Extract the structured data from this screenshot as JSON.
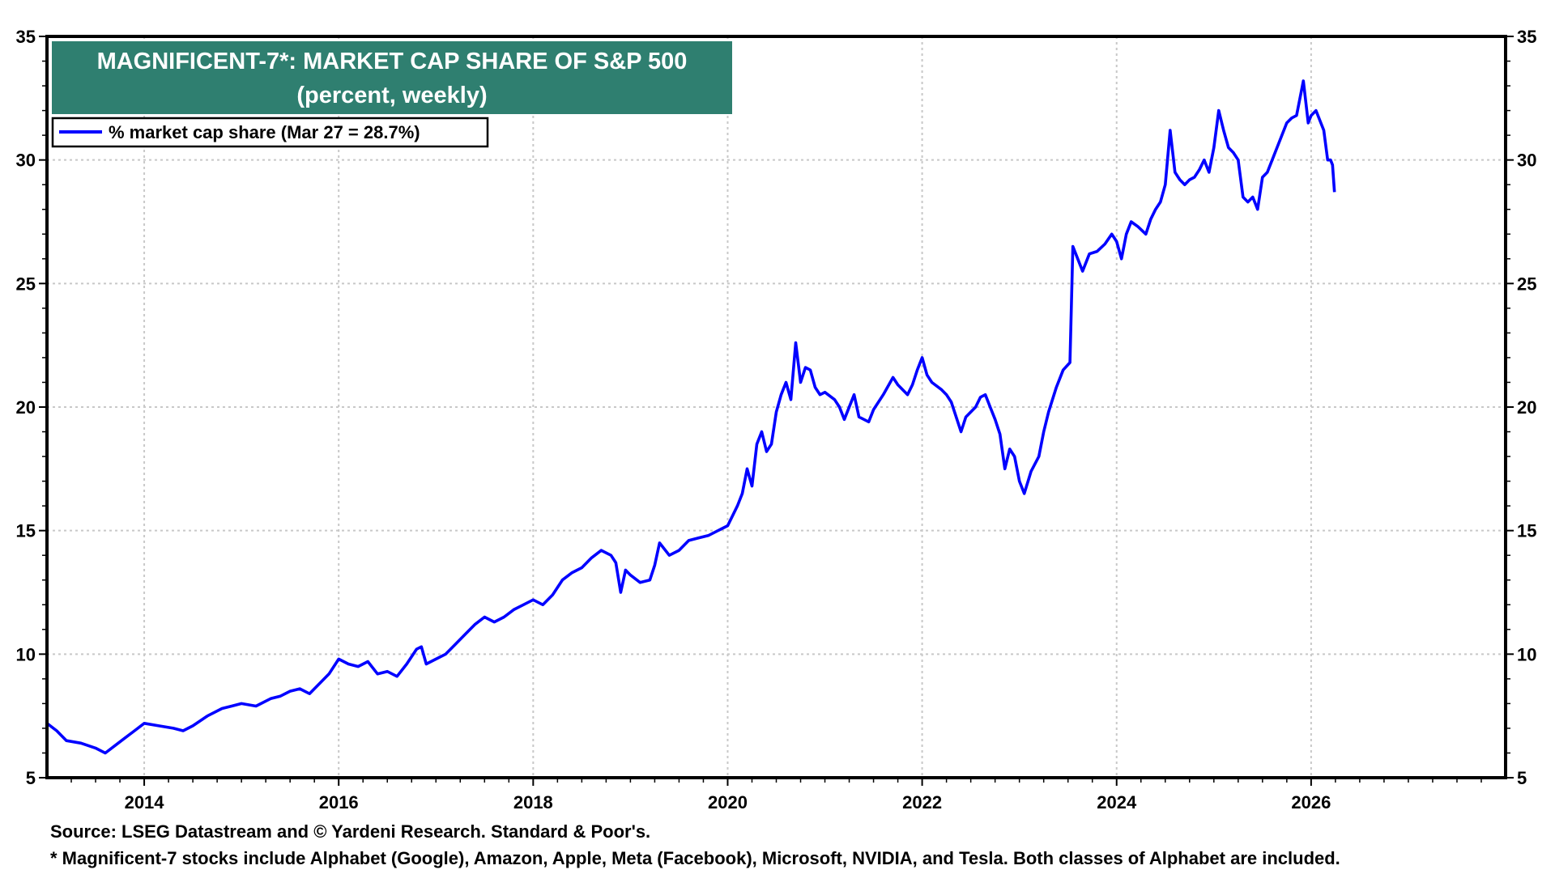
{
  "chart_data": {
    "type": "line",
    "title": "MAGNIFICENT-7*: MARKET CAP SHARE OF S&P 500",
    "subtitle": "(percent, weekly)",
    "xlabel": "",
    "ylabel": "",
    "xlim": [
      2013,
      2028
    ],
    "ylim": [
      5,
      35
    ],
    "x_ticks": [
      "2014",
      "2016",
      "2018",
      "2020",
      "2022",
      "2024",
      "2026"
    ],
    "y_ticks": [
      "5",
      "10",
      "15",
      "20",
      "25",
      "30",
      "35"
    ],
    "y_axis_sides": "left and right",
    "grid": true,
    "legend_position": "top-left",
    "series": [
      {
        "name": "% market cap share (Mar 27 = 28.7%)",
        "color": "#0000ff",
        "points": [
          [
            2013.0,
            7.2
          ],
          [
            2013.1,
            6.9
          ],
          [
            2013.2,
            6.5
          ],
          [
            2013.35,
            6.4
          ],
          [
            2013.5,
            6.2
          ],
          [
            2013.6,
            6.0
          ],
          [
            2013.7,
            6.3
          ],
          [
            2013.8,
            6.6
          ],
          [
            2013.9,
            6.9
          ],
          [
            2014.0,
            7.2
          ],
          [
            2014.15,
            7.1
          ],
          [
            2014.3,
            7.0
          ],
          [
            2014.4,
            6.9
          ],
          [
            2014.5,
            7.1
          ],
          [
            2014.65,
            7.5
          ],
          [
            2014.8,
            7.8
          ],
          [
            2014.9,
            7.9
          ],
          [
            2015.0,
            8.0
          ],
          [
            2015.15,
            7.9
          ],
          [
            2015.3,
            8.2
          ],
          [
            2015.4,
            8.3
          ],
          [
            2015.5,
            8.5
          ],
          [
            2015.6,
            8.6
          ],
          [
            2015.7,
            8.4
          ],
          [
            2015.8,
            8.8
          ],
          [
            2015.9,
            9.2
          ],
          [
            2016.0,
            9.8
          ],
          [
            2016.1,
            9.6
          ],
          [
            2016.2,
            9.5
          ],
          [
            2016.3,
            9.7
          ],
          [
            2016.4,
            9.2
          ],
          [
            2016.5,
            9.3
          ],
          [
            2016.6,
            9.1
          ],
          [
            2016.7,
            9.6
          ],
          [
            2016.8,
            10.2
          ],
          [
            2016.85,
            10.3
          ],
          [
            2016.9,
            9.6
          ],
          [
            2017.0,
            9.8
          ],
          [
            2017.1,
            10.0
          ],
          [
            2017.2,
            10.4
          ],
          [
            2017.3,
            10.8
          ],
          [
            2017.4,
            11.2
          ],
          [
            2017.5,
            11.5
          ],
          [
            2017.6,
            11.3
          ],
          [
            2017.7,
            11.5
          ],
          [
            2017.8,
            11.8
          ],
          [
            2017.9,
            12.0
          ],
          [
            2018.0,
            12.2
          ],
          [
            2018.1,
            12.0
          ],
          [
            2018.2,
            12.4
          ],
          [
            2018.3,
            13.0
          ],
          [
            2018.4,
            13.3
          ],
          [
            2018.5,
            13.5
          ],
          [
            2018.6,
            13.9
          ],
          [
            2018.7,
            14.2
          ],
          [
            2018.8,
            14.0
          ],
          [
            2018.85,
            13.7
          ],
          [
            2018.9,
            12.5
          ],
          [
            2018.95,
            13.4
          ],
          [
            2019.0,
            13.2
          ],
          [
            2019.1,
            12.9
          ],
          [
            2019.2,
            13.0
          ],
          [
            2019.25,
            13.6
          ],
          [
            2019.3,
            14.5
          ],
          [
            2019.4,
            14.0
          ],
          [
            2019.5,
            14.2
          ],
          [
            2019.6,
            14.6
          ],
          [
            2019.7,
            14.7
          ],
          [
            2019.8,
            14.8
          ],
          [
            2019.9,
            15.0
          ],
          [
            2020.0,
            15.2
          ],
          [
            2020.1,
            16.0
          ],
          [
            2020.15,
            16.5
          ],
          [
            2020.2,
            17.5
          ],
          [
            2020.25,
            16.8
          ],
          [
            2020.3,
            18.5
          ],
          [
            2020.35,
            19.0
          ],
          [
            2020.4,
            18.2
          ],
          [
            2020.45,
            18.5
          ],
          [
            2020.5,
            19.8
          ],
          [
            2020.55,
            20.5
          ],
          [
            2020.6,
            21.0
          ],
          [
            2020.65,
            20.3
          ],
          [
            2020.7,
            22.6
          ],
          [
            2020.75,
            21.0
          ],
          [
            2020.8,
            21.6
          ],
          [
            2020.85,
            21.5
          ],
          [
            2020.9,
            20.8
          ],
          [
            2020.95,
            20.5
          ],
          [
            2021.0,
            20.6
          ],
          [
            2021.1,
            20.3
          ],
          [
            2021.15,
            20.0
          ],
          [
            2021.2,
            19.5
          ],
          [
            2021.3,
            20.5
          ],
          [
            2021.35,
            19.6
          ],
          [
            2021.45,
            19.4
          ],
          [
            2021.5,
            19.9
          ],
          [
            2021.6,
            20.5
          ],
          [
            2021.7,
            21.2
          ],
          [
            2021.75,
            20.9
          ],
          [
            2021.85,
            20.5
          ],
          [
            2021.9,
            20.9
          ],
          [
            2021.95,
            21.5
          ],
          [
            2022.0,
            22.0
          ],
          [
            2022.05,
            21.3
          ],
          [
            2022.1,
            21.0
          ],
          [
            2022.2,
            20.7
          ],
          [
            2022.25,
            20.5
          ],
          [
            2022.3,
            20.2
          ],
          [
            2022.4,
            19.0
          ],
          [
            2022.45,
            19.6
          ],
          [
            2022.55,
            20.0
          ],
          [
            2022.6,
            20.4
          ],
          [
            2022.65,
            20.5
          ],
          [
            2022.7,
            20.0
          ],
          [
            2022.75,
            19.5
          ],
          [
            2022.8,
            18.9
          ],
          [
            2022.85,
            17.5
          ],
          [
            2022.9,
            18.3
          ],
          [
            2022.95,
            18.0
          ],
          [
            2023.0,
            17.0
          ],
          [
            2023.05,
            16.5
          ],
          [
            2023.12,
            17.4
          ],
          [
            2023.2,
            18.0
          ],
          [
            2023.25,
            19.0
          ],
          [
            2023.3,
            19.8
          ],
          [
            2023.38,
            20.8
          ],
          [
            2023.45,
            21.5
          ],
          [
            2023.52,
            21.8
          ],
          [
            2023.55,
            26.5
          ],
          [
            2023.6,
            26.0
          ],
          [
            2023.65,
            25.5
          ],
          [
            2023.72,
            26.2
          ],
          [
            2023.8,
            26.3
          ],
          [
            2023.88,
            26.6
          ],
          [
            2023.95,
            27.0
          ],
          [
            2024.0,
            26.7
          ],
          [
            2024.05,
            26.0
          ],
          [
            2024.1,
            27.0
          ],
          [
            2024.15,
            27.5
          ],
          [
            2024.22,
            27.3
          ],
          [
            2024.3,
            27.0
          ],
          [
            2024.35,
            27.6
          ],
          [
            2024.4,
            28.0
          ],
          [
            2024.45,
            28.3
          ],
          [
            2024.5,
            29.0
          ],
          [
            2024.55,
            31.2
          ],
          [
            2024.6,
            29.5
          ],
          [
            2024.65,
            29.2
          ],
          [
            2024.7,
            29.0
          ],
          [
            2024.75,
            29.2
          ],
          [
            2024.8,
            29.3
          ],
          [
            2024.85,
            29.6
          ],
          [
            2024.9,
            30.0
          ],
          [
            2024.95,
            29.5
          ],
          [
            2025.0,
            30.5
          ],
          [
            2025.05,
            32.0
          ],
          [
            2025.1,
            31.2
          ],
          [
            2025.15,
            30.5
          ],
          [
            2025.2,
            30.3
          ],
          [
            2025.25,
            30.0
          ],
          [
            2025.3,
            28.5
          ],
          [
            2025.35,
            28.3
          ],
          [
            2025.4,
            28.5
          ],
          [
            2025.45,
            28.0
          ],
          [
            2025.5,
            29.3
          ],
          [
            2025.55,
            29.5
          ],
          [
            2025.6,
            30.0
          ],
          [
            2025.65,
            30.5
          ],
          [
            2025.7,
            31.0
          ],
          [
            2025.75,
            31.5
          ],
          [
            2025.8,
            31.7
          ],
          [
            2025.85,
            31.8
          ],
          [
            2025.92,
            33.2
          ],
          [
            2025.97,
            31.5
          ],
          [
            2026.0,
            31.8
          ],
          [
            2026.05,
            32.0
          ],
          [
            2026.1,
            31.5
          ],
          [
            2026.13,
            31.2
          ],
          [
            2026.17,
            30.0
          ],
          [
            2026.2,
            30.0
          ],
          [
            2026.22,
            29.8
          ],
          [
            2026.24,
            28.7
          ]
        ]
      }
    ],
    "annotations": []
  },
  "colors": {
    "title_background": "#2f7f70",
    "line": "#0000ff",
    "axis": "#000000",
    "grid": "#c8c8c8"
  },
  "footer": {
    "source": "Source: LSEG Datastream and © Yardeni Research. Standard & Poor's.",
    "note": "* Magnificent-7 stocks include Alphabet (Google), Amazon, Apple, Meta (Facebook), Microsoft, NVIDIA, and Tesla. Both classes of Alphabet are included."
  }
}
